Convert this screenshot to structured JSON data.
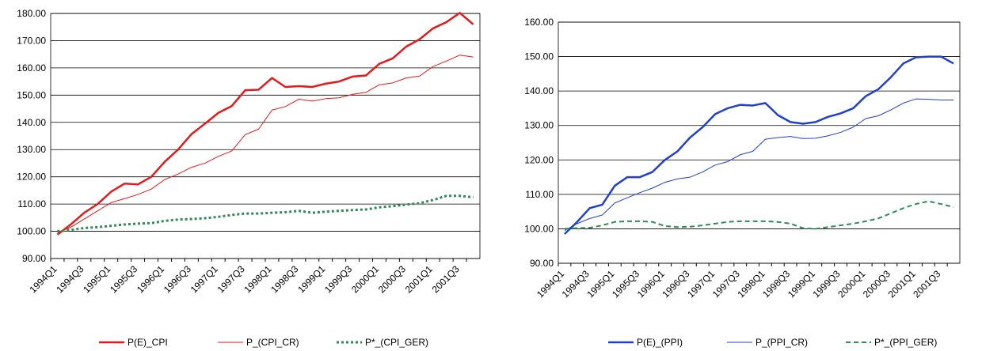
{
  "chart_data": [
    {
      "type": "line",
      "categories": [
        "1994Q1",
        null,
        "1994Q3",
        null,
        "1995Q1",
        null,
        "1995Q3",
        null,
        "1996Q1",
        null,
        "1996Q3",
        null,
        "1997Q1",
        null,
        "1997Q3",
        null,
        "1998Q1",
        null,
        "1998Q3",
        null,
        "1999Q1",
        null,
        "1999Q3",
        null,
        "2000Q1",
        null,
        "2000Q3",
        null,
        "2001Q1",
        null,
        "2001Q3",
        null
      ],
      "ylim": [
        90,
        180
      ],
      "yticks": [
        {
          "value": 90,
          "label": "90.00"
        },
        {
          "value": 100,
          "label": "100.00"
        },
        {
          "value": 110,
          "label": "110.00"
        },
        {
          "value": 120,
          "label": "120.00"
        },
        {
          "value": 130,
          "label": "130.00"
        },
        {
          "value": 140,
          "label": "140.00"
        },
        {
          "value": 150,
          "label": "150.00"
        },
        {
          "value": 160,
          "label": "160.00"
        },
        {
          "value": 170,
          "label": "170.00"
        },
        {
          "value": 180,
          "label": "180.00"
        }
      ],
      "grid": true,
      "legend": "bottom",
      "series": [
        {
          "name": "P(E)_CPI",
          "color": "#e31a1c",
          "style": "thick",
          "values": [
            98.8,
            102.5,
            106.8,
            110,
            114.5,
            117.5,
            117.2,
            120,
            125.5,
            130,
            135.7,
            139.5,
            143.5,
            146,
            151.8,
            152,
            156.3,
            153,
            153.3,
            153,
            154.2,
            155,
            156.8,
            157.2,
            161.5,
            163.5,
            167.8,
            170.5,
            174.5,
            176.8,
            180.2,
            176
          ]
        },
        {
          "name": "P_(CPI_CR)",
          "color": "#e31a1c",
          "style": "thin",
          "values": [
            99.5,
            101.5,
            104.5,
            107.5,
            110.5,
            112,
            113.5,
            115.5,
            119,
            121,
            123.5,
            125,
            127.5,
            129.5,
            135.5,
            137.5,
            144.5,
            145.8,
            148.5,
            147.8,
            148.7,
            149,
            150.3,
            151,
            153.8,
            154.5,
            156.3,
            157,
            160.5,
            162.5,
            164.7,
            164
          ]
        },
        {
          "name": "P*_(CPI_GER)",
          "color": "#2e8b57",
          "style": "dotted",
          "values": [
            100,
            100.5,
            101.2,
            101.5,
            102,
            102.5,
            102.8,
            103,
            103.8,
            104.3,
            104.5,
            104.8,
            105.3,
            106,
            106.5,
            106.5,
            106.8,
            107,
            107.5,
            106.8,
            107.2,
            107.5,
            107.8,
            108,
            108.8,
            109.2,
            109.8,
            110.3,
            111.5,
            113,
            113,
            112.5
          ]
        }
      ]
    },
    {
      "type": "line",
      "categories": [
        "1994Q1",
        null,
        "1994Q3",
        null,
        "1995Q1",
        null,
        "1995Q3",
        null,
        "1996Q1",
        null,
        "1996Q3",
        null,
        "1997Q1",
        null,
        "1997Q3",
        null,
        "1998Q1",
        null,
        "1998Q3",
        null,
        "1999Q1",
        null,
        "1999Q3",
        null,
        "2000Q1",
        null,
        "2000Q3",
        null,
        "2001Q1",
        null,
        "2001Q3",
        null
      ],
      "ylim": [
        90,
        160
      ],
      "yticks": [
        {
          "value": 90,
          "label": "90.00"
        },
        {
          "value": 100,
          "label": "100.00"
        },
        {
          "value": 110,
          "label": "110.00"
        },
        {
          "value": 120,
          "label": "120.00"
        },
        {
          "value": 130,
          "label": "130.00"
        },
        {
          "value": 140,
          "label": "140.00"
        },
        {
          "value": 150,
          "label": "150.00"
        },
        {
          "value": 160,
          "label": "160.00"
        }
      ],
      "grid": true,
      "legend": "bottom",
      "series": [
        {
          "name": "P(E)_(PPI)",
          "color": "#1f3fd1",
          "style": "thick",
          "values": [
            98.5,
            102,
            106,
            107,
            112.5,
            115,
            115,
            116.5,
            120,
            122.5,
            126.5,
            129.5,
            133.3,
            135,
            136,
            135.8,
            136.5,
            133,
            131,
            130.5,
            131,
            132.5,
            133.5,
            135,
            138.5,
            140.5,
            144,
            148,
            149.8,
            150,
            150,
            148
          ]
        },
        {
          "name": "P_(PPI_CR)",
          "color": "#1f3fd1",
          "style": "thin",
          "values": [
            99.5,
            101.5,
            103,
            104,
            107.5,
            109,
            110.5,
            111.8,
            113.5,
            114.5,
            115,
            116.5,
            118.5,
            119.5,
            121.5,
            122.5,
            126,
            126.5,
            126.8,
            126.2,
            126.3,
            127,
            128,
            129.5,
            132,
            132.8,
            134.5,
            136.5,
            137.7,
            137.6,
            137.4,
            137.4
          ]
        },
        {
          "name": "P*_(PPI_GER)",
          "color": "#2e8b57",
          "style": "dashed",
          "values": [
            100,
            100.2,
            100.3,
            101,
            102,
            102.2,
            102.2,
            102,
            100.8,
            100.5,
            100.6,
            101,
            101.5,
            102,
            102.2,
            102.2,
            102.2,
            102,
            101.5,
            100.2,
            100,
            100.5,
            101,
            101.5,
            102.2,
            103,
            104.5,
            106,
            107.2,
            108,
            107.2,
            106.3
          ]
        }
      ]
    }
  ]
}
